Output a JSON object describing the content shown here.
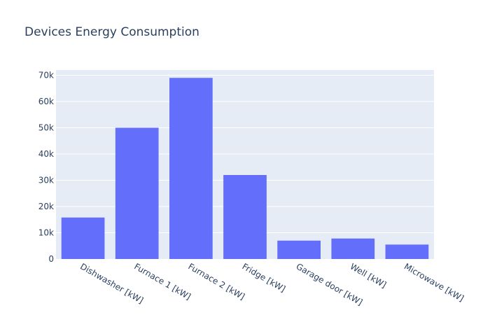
{
  "chart_data": {
    "type": "bar",
    "title": "Devices Energy Consumption",
    "xlabel": "",
    "ylabel": "",
    "categories": [
      "Dishwasher [kW]",
      "Furnace 1 [kW]",
      "Furnace 2 [kW]",
      "Fridge [kW]",
      "Garage door [kW]",
      "Well [kW]",
      "Microwave [kW]"
    ],
    "values": [
      15800,
      50000,
      69000,
      32000,
      7000,
      7800,
      5500
    ],
    "ylim": [
      0,
      72000
    ],
    "yticks": [
      0,
      10000,
      20000,
      30000,
      40000,
      50000,
      60000,
      70000
    ],
    "ytick_labels": [
      "0",
      "10k",
      "20k",
      "30k",
      "40k",
      "50k",
      "60k",
      "70k"
    ],
    "grid": true,
    "legend": "none",
    "colors": {
      "bar": "#636efa",
      "plot_bg": "#e5ecf6",
      "grid": "#ffffff",
      "text": "#2a3f5f"
    }
  }
}
